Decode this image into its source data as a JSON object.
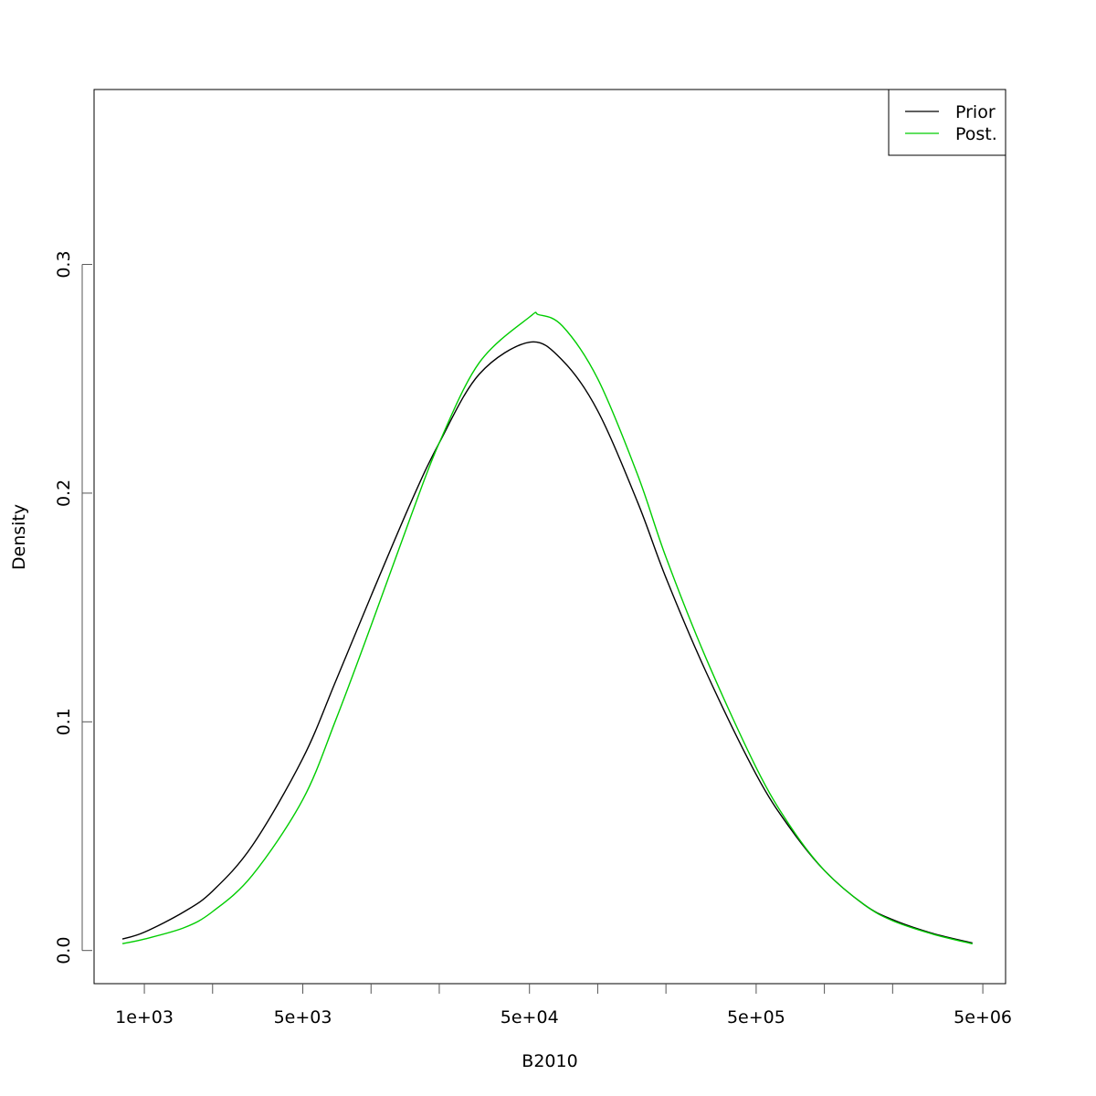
{
  "chart_data": {
    "type": "line",
    "title": "",
    "xlabel": "B2010",
    "ylabel": "Density",
    "x_scale": "log",
    "xlim": [
      600,
      6300000
    ],
    "ylim": [
      -0.0145,
      0.3765
    ],
    "x_ticks": [
      1000,
      2000,
      5000,
      10000,
      20000,
      50000,
      100000,
      200000,
      500000,
      1000000,
      2000000,
      5000000
    ],
    "x_tick_labels": [
      {
        "value": 1000,
        "label": "1e+03"
      },
      {
        "value": 5000,
        "label": "5e+03"
      },
      {
        "value": 50000,
        "label": "5e+04"
      },
      {
        "value": 500000,
        "label": "5e+05"
      },
      {
        "value": 5000000,
        "label": "5e+06"
      }
    ],
    "y_ticks": [
      {
        "value": 0.0,
        "label": "0.0"
      },
      {
        "value": 0.1,
        "label": "0.1"
      },
      {
        "value": 0.2,
        "label": "0.2"
      },
      {
        "value": 0.3,
        "label": "0.3"
      }
    ],
    "grid": false,
    "legend_position": "top-right",
    "series": [
      {
        "name": "Prior",
        "color": "#000000",
        "x": [
          800,
          1000,
          1500,
          2000,
          3000,
          5000,
          7000,
          10000,
          15000,
          20000,
          30000,
          50000,
          70000,
          100000,
          150000,
          200000,
          300000,
          500000,
          700000,
          1000000,
          1500000,
          2000000,
          3000000,
          4500000
        ],
        "y": [
          0.005,
          0.008,
          0.017,
          0.026,
          0.046,
          0.084,
          0.118,
          0.155,
          0.196,
          0.222,
          0.252,
          0.266,
          0.258,
          0.236,
          0.196,
          0.163,
          0.122,
          0.077,
          0.054,
          0.035,
          0.02,
          0.0135,
          0.0075,
          0.0033
        ]
      },
      {
        "name": "Post.",
        "color": "#00cd00",
        "x": [
          800,
          1000,
          1500,
          2000,
          3000,
          5000,
          7000,
          10000,
          15000,
          20000,
          30000,
          50000,
          55000,
          70000,
          100000,
          150000,
          200000,
          300000,
          500000,
          700000,
          1000000,
          1500000,
          2000000,
          3000000,
          4500000
        ],
        "y": [
          0.003,
          0.005,
          0.01,
          0.017,
          0.033,
          0.066,
          0.101,
          0.142,
          0.19,
          0.222,
          0.257,
          0.277,
          0.278,
          0.273,
          0.25,
          0.208,
          0.172,
          0.128,
          0.08,
          0.055,
          0.035,
          0.02,
          0.013,
          0.0072,
          0.0029
        ]
      }
    ]
  }
}
